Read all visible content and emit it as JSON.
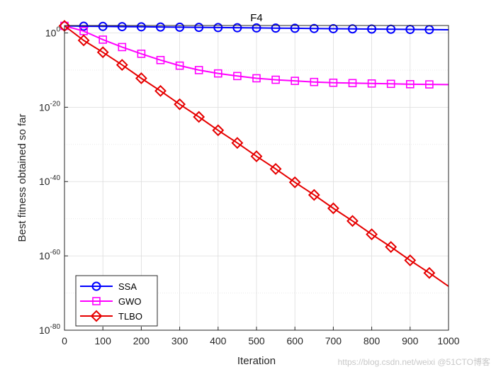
{
  "chart_data": {
    "type": "line",
    "title": "F4",
    "xlabel": "Iteration",
    "ylabel": "Best fitness obtained so far",
    "xlim": [
      0,
      1000
    ],
    "ylim_log10": [
      -80,
      2
    ],
    "yscale": "log",
    "xticks": [
      0,
      100,
      200,
      300,
      400,
      500,
      600,
      700,
      800,
      900,
      1000
    ],
    "yticks": [
      {
        "base": "10",
        "exp": "0",
        "log10": 0
      },
      {
        "base": "10",
        "exp": "-20",
        "log10": -20
      },
      {
        "base": "10",
        "exp": "-40",
        "log10": -40
      },
      {
        "base": "10",
        "exp": "-60",
        "log10": -60
      },
      {
        "base": "10",
        "exp": "-80",
        "log10": -80
      }
    ],
    "grid": true,
    "legend_position": "bottom-left",
    "x": [
      0,
      50,
      100,
      150,
      200,
      250,
      300,
      350,
      400,
      450,
      500,
      550,
      600,
      650,
      700,
      750,
      800,
      850,
      900,
      950,
      1000
    ],
    "series": [
      {
        "name": "SSA",
        "color": "#0000ff",
        "marker": "circle",
        "log10_values": [
          1.9,
          1.8,
          1.75,
          1.7,
          1.65,
          1.6,
          1.55,
          1.5,
          1.45,
          1.4,
          1.35,
          1.3,
          1.25,
          1.2,
          1.15,
          1.1,
          1.05,
          1.0,
          0.95,
          0.9,
          0.85
        ]
      },
      {
        "name": "GWO",
        "color": "#ff00ff",
        "marker": "square",
        "log10_values": [
          1.9,
          0.5,
          -1.8,
          -3.8,
          -5.6,
          -7.3,
          -8.8,
          -10.0,
          -10.9,
          -11.6,
          -12.2,
          -12.6,
          -12.9,
          -13.2,
          -13.4,
          -13.5,
          -13.6,
          -13.7,
          -13.8,
          -13.85,
          -13.9
        ]
      },
      {
        "name": "TLBO",
        "color": "#e60000",
        "marker": "diamond",
        "log10_values": [
          1.9,
          -2.0,
          -5.2,
          -8.6,
          -12.2,
          -15.6,
          -19.2,
          -22.6,
          -26.2,
          -29.6,
          -33.2,
          -36.6,
          -40.2,
          -43.6,
          -47.2,
          -50.6,
          -54.2,
          -57.6,
          -61.2,
          -64.6,
          -68.2
        ]
      }
    ]
  },
  "watermark": "https://blog.csdn.net/weixi @51CTO博客"
}
